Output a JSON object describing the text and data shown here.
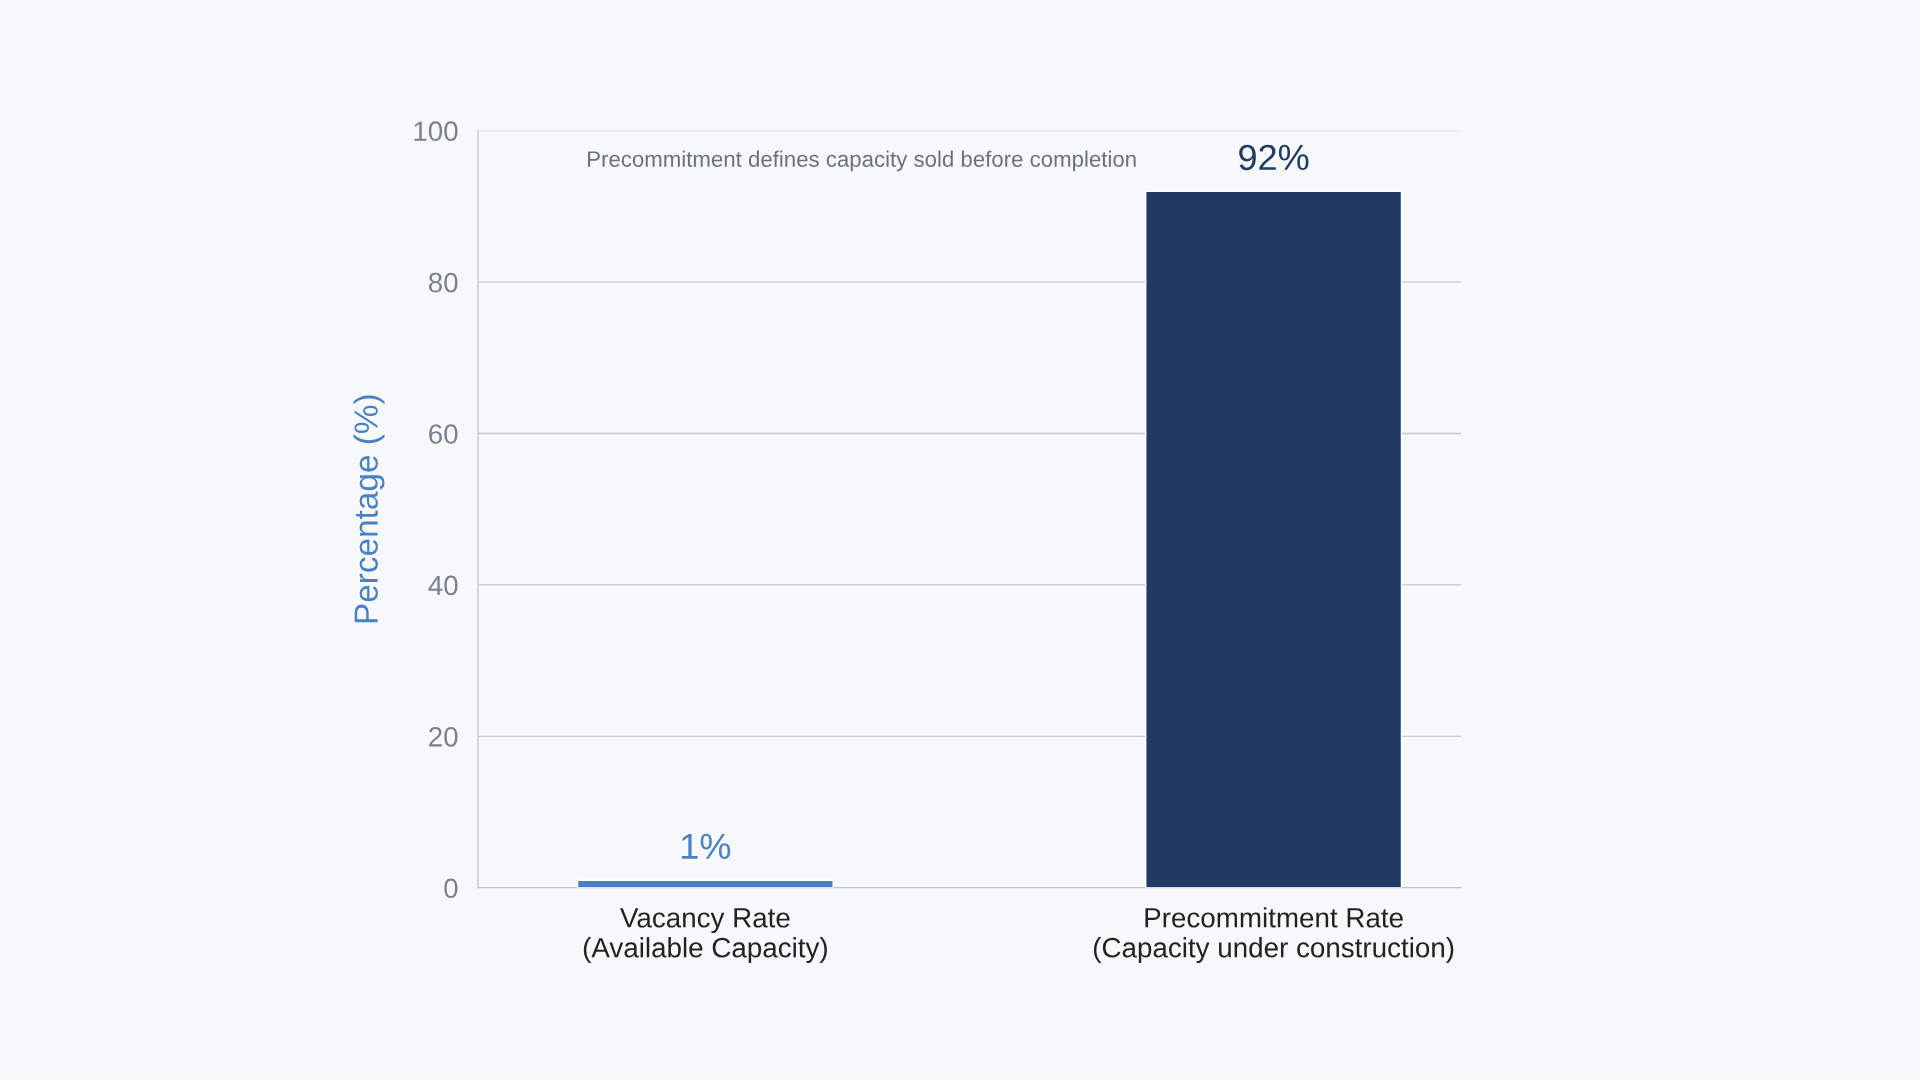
{
  "chart_data": {
    "type": "bar",
    "ylabel": "Percentage (%)",
    "categories": [
      "Vacancy Rate\n(Available Capacity)",
      "Precommitment Rate\n(Capacity under construction)"
    ],
    "values": [
      1,
      92
    ],
    "colors": [
      "#4a80c4",
      "#1f3a63"
    ],
    "value_labels": [
      "1%",
      "92%"
    ],
    "ylim": [
      0,
      100
    ],
    "yticks": [
      0,
      20,
      40,
      60,
      80,
      100
    ],
    "grid": "y",
    "annotations": [
      "Precommitment defines capacity sold before completion"
    ]
  }
}
